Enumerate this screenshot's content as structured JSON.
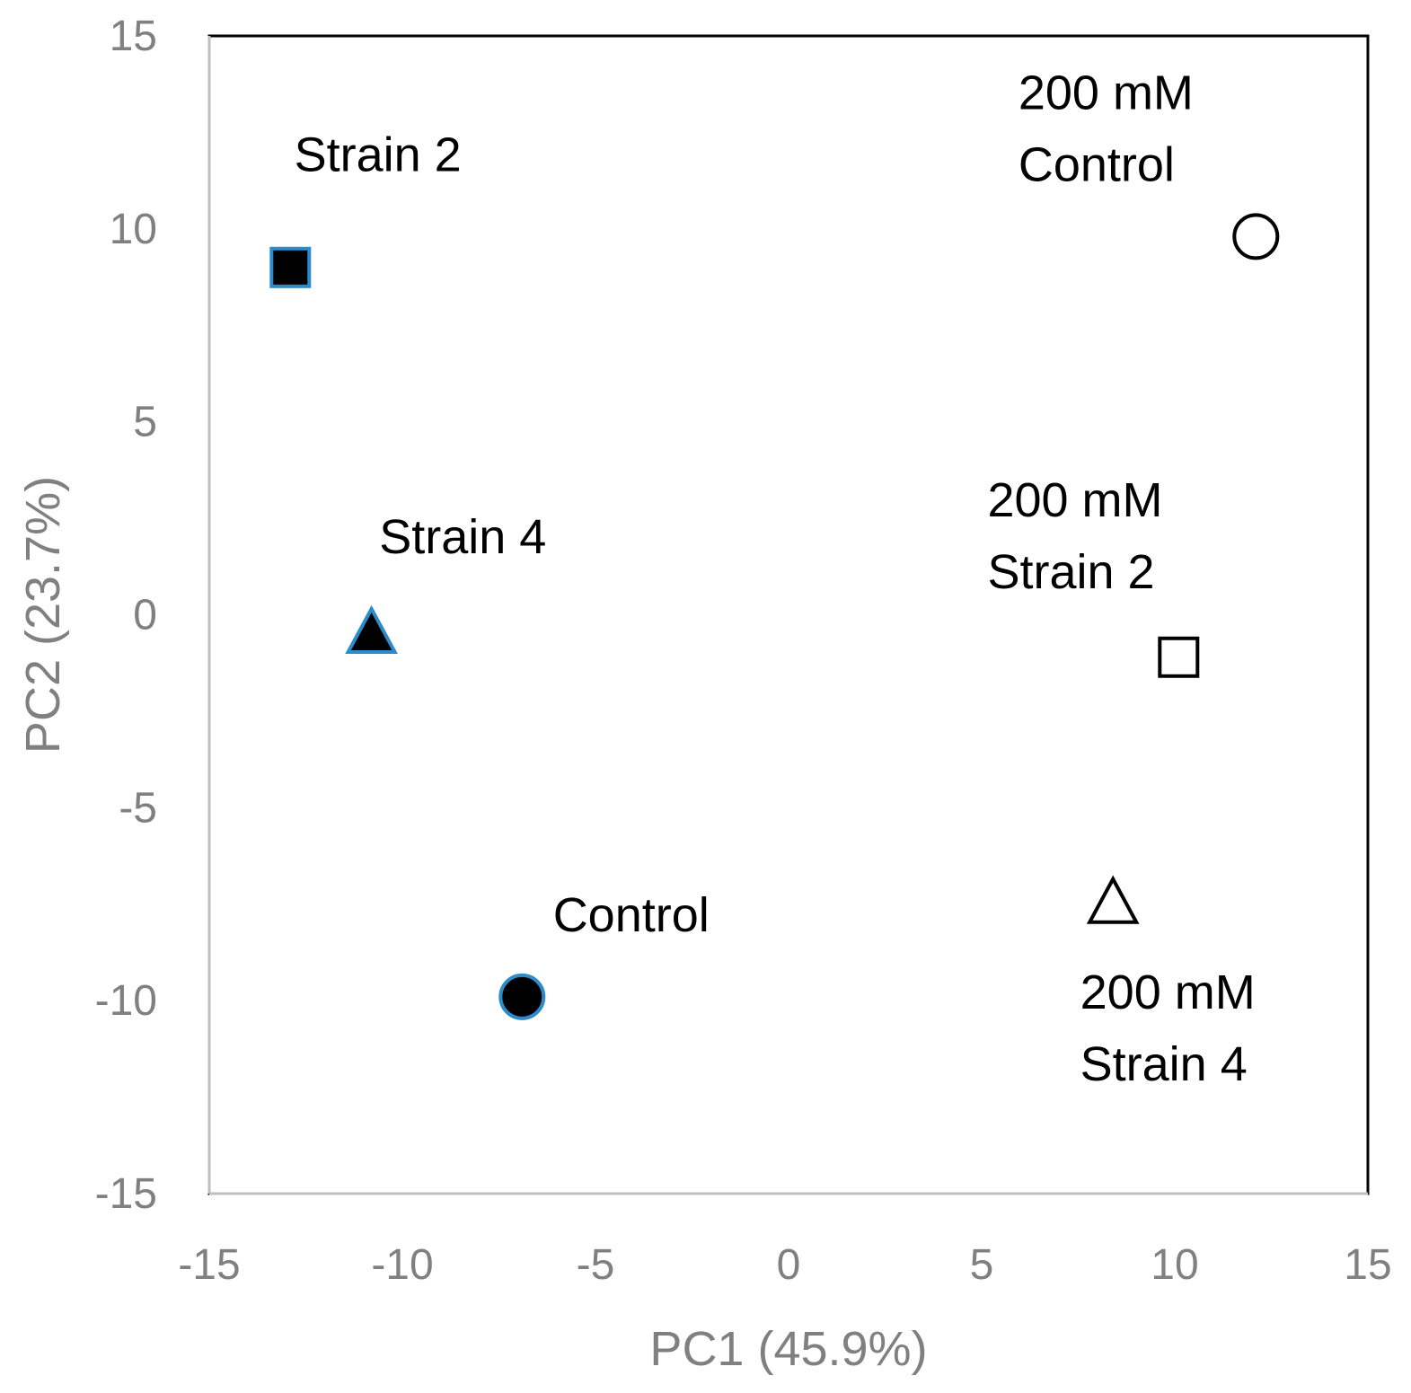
{
  "chart_data": {
    "type": "scatter",
    "title": "",
    "xlabel": "PC1 (45.9%)",
    "ylabel": "PC2 (23.7%)",
    "xlim": [
      -15,
      15
    ],
    "ylim": [
      -15,
      15
    ],
    "xticks": [
      -15,
      -10,
      -5,
      0,
      5,
      10,
      15
    ],
    "yticks": [
      -15,
      -10,
      -5,
      0,
      5,
      10,
      15
    ],
    "xtick_labels": [
      "-15",
      "-10",
      "-5",
      "0",
      "5",
      "10",
      "15"
    ],
    "ytick_labels": [
      "-15",
      "-10",
      "-5",
      "0",
      "5",
      "10",
      "15"
    ],
    "grid": false,
    "legend": "none",
    "colors": {
      "axis": "#bfbfbf",
      "frame": "#000000",
      "edge_blue": "#2e8bc9",
      "text": "#808080"
    },
    "series": [
      {
        "name": "Strain 2",
        "marker": "square",
        "filled": true,
        "x": -12.9,
        "y": 9.0
      },
      {
        "name": "Strain 4",
        "marker": "triangle",
        "filled": true,
        "x": -10.8,
        "y": -0.5
      },
      {
        "name": "Control",
        "marker": "circle",
        "filled": true,
        "x": -6.9,
        "y": -9.9
      },
      {
        "name": "200 mM Control",
        "marker": "circle",
        "filled": false,
        "x": 12.1,
        "y": 9.8
      },
      {
        "name": "200 mM Strain 2",
        "marker": "square",
        "filled": false,
        "x": 10.1,
        "y": -1.1
      },
      {
        "name": "200 mM Strain 4",
        "marker": "triangle",
        "filled": false,
        "x": 8.4,
        "y": -7.5
      }
    ],
    "annotations": [
      {
        "lines": [
          "Strain 2"
        ],
        "x": -12.8,
        "y": 11.5
      },
      {
        "lines": [
          "Strain 4"
        ],
        "x": -10.6,
        "y": 1.6
      },
      {
        "lines": [
          "Control"
        ],
        "x": -6.1,
        "y": -8.2
      },
      {
        "lines": [
          "200 mM",
          "Control"
        ],
        "x": 5.95,
        "y": 13.1
      },
      {
        "lines": [
          "200 mM",
          "Strain 2"
        ],
        "x": 5.15,
        "y": 2.55
      },
      {
        "lines": [
          "200 mM",
          "Strain 4"
        ],
        "x": 7.55,
        "y": -10.2
      }
    ]
  }
}
